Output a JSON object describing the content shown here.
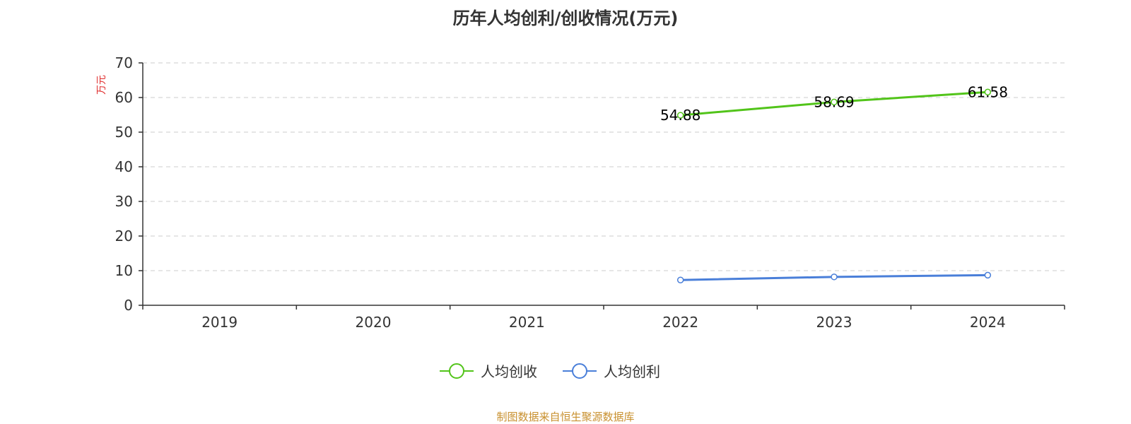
{
  "chart_data": {
    "type": "line",
    "title": "历年人均创利/创收情况(万元)",
    "ylabel": "万元",
    "categories": [
      "2019",
      "2020",
      "2021",
      "2022",
      "2023",
      "2024"
    ],
    "ylim": [
      0,
      70
    ],
    "yticks": [
      0,
      10,
      20,
      30,
      40,
      50,
      60,
      70
    ],
    "grid": true,
    "legend_position": "bottom",
    "series": [
      {
        "name": "人均创收",
        "color": "#52c41a",
        "values": [
          null,
          null,
          null,
          54.88,
          58.69,
          61.58
        ],
        "labels": [
          null,
          null,
          null,
          "54.88",
          "58.69",
          "61.58"
        ]
      },
      {
        "name": "人均创利",
        "color": "#4a7fd9",
        "values": [
          null,
          null,
          null,
          7.3,
          8.2,
          8.7
        ],
        "labels": [
          null,
          null,
          null,
          null,
          null,
          null
        ]
      }
    ]
  },
  "footer": {
    "source": "制图数据来自恒生聚源数据库"
  },
  "colors": {
    "axis": "#333333",
    "grid": "#cccccc",
    "unit_label": "#e03030",
    "source_text": "#c8902e"
  }
}
